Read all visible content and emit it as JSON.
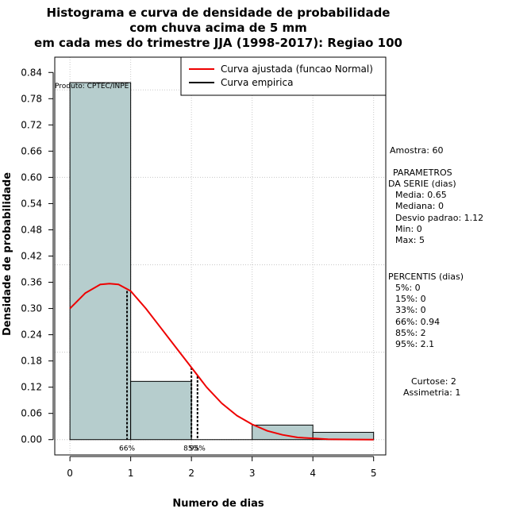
{
  "chart_data": {
    "type": "bar",
    "title_lines": [
      "Histograma e curva de densidade de probabilidade",
      "com chuva acima de 5 mm",
      "em cada mes do trimestre JJA (1998-2017): Regiao 100"
    ],
    "xlabel": "Numero de dias",
    "ylabel": "Densidade de probabilidade",
    "xlim": [
      -0.25,
      5.2
    ],
    "ylim": [
      -0.035,
      0.875
    ],
    "x_ticks": [
      "0",
      "1",
      "2",
      "3",
      "4",
      "5"
    ],
    "x_tick_values": [
      0,
      1,
      2,
      3,
      4,
      5
    ],
    "y_ticks": [
      "0.00",
      "0.06",
      "0.12",
      "0.18",
      "0.24",
      "0.30",
      "0.36",
      "0.42",
      "0.48",
      "0.54",
      "0.60",
      "0.66",
      "0.72",
      "0.78",
      "0.84"
    ],
    "y_tick_values": [
      0.0,
      0.06,
      0.12,
      0.18,
      0.24,
      0.3,
      0.36,
      0.42,
      0.48,
      0.54,
      0.6,
      0.66,
      0.72,
      0.78,
      0.84
    ],
    "grid_x": [
      0,
      1,
      2,
      3,
      4,
      5
    ],
    "grid_y": [
      0.0,
      0.2,
      0.4,
      0.6,
      0.8
    ],
    "bins": [
      {
        "from": 0,
        "to": 1,
        "density": 0.8167
      },
      {
        "from": 1,
        "to": 2,
        "density": 0.1333
      },
      {
        "from": 2,
        "to": 3,
        "density": 0.0
      },
      {
        "from": 3,
        "to": 4,
        "density": 0.0333
      },
      {
        "from": 4,
        "to": 5,
        "density": 0.0167
      }
    ],
    "fitted_curve": {
      "name": "Curva ajustada (funcao Normal)",
      "color": "#ee0000",
      "x": [
        0,
        0.25,
        0.5,
        0.65,
        0.8,
        1.0,
        1.25,
        1.5,
        1.75,
        2.0,
        2.25,
        2.5,
        2.75,
        3.0,
        3.25,
        3.5,
        3.75,
        4.0,
        4.25,
        4.5,
        4.75,
        5.0
      ],
      "y": [
        0.3,
        0.335,
        0.355,
        0.357,
        0.355,
        0.34,
        0.3,
        0.255,
        0.21,
        0.165,
        0.12,
        0.083,
        0.055,
        0.035,
        0.02,
        0.011,
        0.005,
        0.003,
        0.001,
        0.0005,
        0.0002,
        0.0001
      ]
    },
    "empirical_curve": {
      "name": "Curva empirica",
      "color": "#000000"
    },
    "percentile_lines": [
      {
        "x": 0.94,
        "label": "66%",
        "y_top": 0.34
      },
      {
        "x": 2.0,
        "label": "85%",
        "y_top": 0.165
      },
      {
        "x": 2.1,
        "label": "95%",
        "y_top": 0.145
      }
    ],
    "legend_position": "top-right",
    "bar_color": "#b6cdcd",
    "producer_label": "Produto: CPTEC/INPE"
  },
  "side_panel": {
    "amostra": "Amostra: 60",
    "param_title_1": "PARAMETROS",
    "param_title_2": "DA SERIE (dias)",
    "media": "Media: 0.65",
    "mediana": "Mediana: 0",
    "desvio": "Desvio padrao: 1.12",
    "min": "Min: 0",
    "max": "Max: 5",
    "perc_title": "PERCENTIS (dias)",
    "p5": "5%: 0",
    "p15": "15%: 0",
    "p33": "33%: 0",
    "p66": "66%: 0.94",
    "p85": "85%: 2",
    "p95": "95%: 2.1",
    "curtose": "Curtose: 2",
    "assimetria": "Assimetria: 1"
  }
}
